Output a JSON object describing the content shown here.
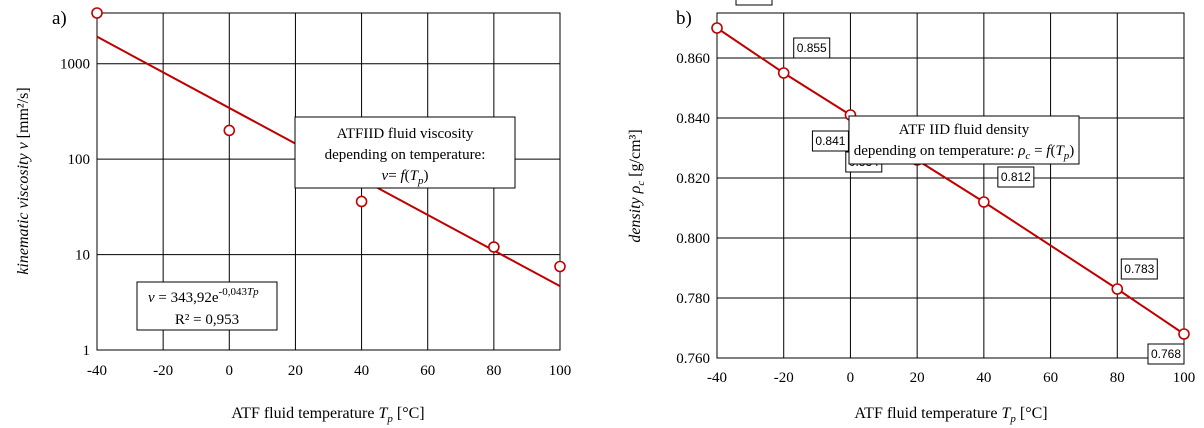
{
  "chart_data": [
    {
      "panel_label": "a)",
      "type": "scatter",
      "scale": "log-y",
      "xlabel": {
        "text": "ATF fluid temperature ",
        "var": "T",
        "sub": "p",
        "unit": " [°C]"
      },
      "ylabel": {
        "text": "kinematic viscosity ",
        "var": "ν",
        "unit": " [mm²/s]"
      },
      "xlim": [
        -40,
        100
      ],
      "ylim": [
        1,
        3400
      ],
      "x_ticks": [
        -40,
        -20,
        0,
        20,
        40,
        60,
        80,
        100
      ],
      "x_tick_labels": [
        "-40",
        "-20",
        "0",
        "20",
        "40",
        "60",
        "80",
        "100"
      ],
      "y_ticks": [
        1,
        10,
        100,
        1000
      ],
      "y_tick_labels": [
        "1",
        "10",
        "100",
        "1000"
      ],
      "grid": true,
      "series": [
        {
          "x": [
            -40,
            0,
            40,
            80,
            100
          ],
          "y": [
            3400,
            200,
            36,
            12,
            7.5
          ],
          "color": "#c00000"
        }
      ],
      "trendline": {
        "type": "exponential",
        "a": 343.92,
        "b": -0.043,
        "color": "#c00000"
      },
      "annotation_title": {
        "line1": "ATFIID fluid viscosity",
        "line2": "depending on temperature:",
        "line3_var": "ν",
        "line3_eq": "= ",
        "line3_f": "f",
        "line3_open": "(",
        "line3_T": "T",
        "line3_sub": "p",
        "line3_close": ")"
      },
      "annotation_equation": {
        "var": "ν",
        "eq": " = 343,92e",
        "exp": "-0,043",
        "exp_var": "Tp",
        "r2": "R² = 0,953"
      }
    },
    {
      "panel_label": "b)",
      "type": "line",
      "xlabel": {
        "text": "ATF fluid temperature ",
        "var": "T",
        "sub": "p",
        "unit": " [°C]"
      },
      "ylabel": {
        "text": "density ",
        "var": "ρ",
        "sub": "c",
        "unit": " [g/cm³]"
      },
      "xlim": [
        -40,
        100
      ],
      "ylim": [
        0.76,
        0.875
      ],
      "x_ticks": [
        -40,
        -20,
        0,
        20,
        40,
        60,
        80,
        100
      ],
      "x_tick_labels": [
        "-40",
        "-20",
        "0",
        "20",
        "40",
        "60",
        "80",
        "100"
      ],
      "y_ticks": [
        0.76,
        0.78,
        0.8,
        0.82,
        0.84,
        0.86
      ],
      "y_tick_labels": [
        "0.760",
        "0.780",
        "0.800",
        "0.820",
        "0.840",
        "0.860"
      ],
      "grid": true,
      "series": [
        {
          "x": [
            -40,
            -20,
            0,
            10,
            20,
            40,
            80,
            100
          ],
          "y": [
            0.87,
            0.855,
            0.841,
            0.834,
            0.826,
            0.812,
            0.783,
            0.768
          ],
          "color": "#c00000"
        }
      ],
      "data_labels": [
        "0.870",
        "0.855",
        "0.841",
        "0.834",
        "0.826",
        "0.812",
        "0.783",
        "0.768"
      ],
      "annotation_title": {
        "line1": "ATF IID fluid density",
        "line2": "depending on temperature: ",
        "line2_var": "ρ",
        "line2_sub": "c",
        "line2_eq": " = ",
        "line2_f": "f",
        "line2_open": "(",
        "line2_T": "T",
        "line2_Tsub": "p",
        "line2_close": ")"
      }
    }
  ]
}
